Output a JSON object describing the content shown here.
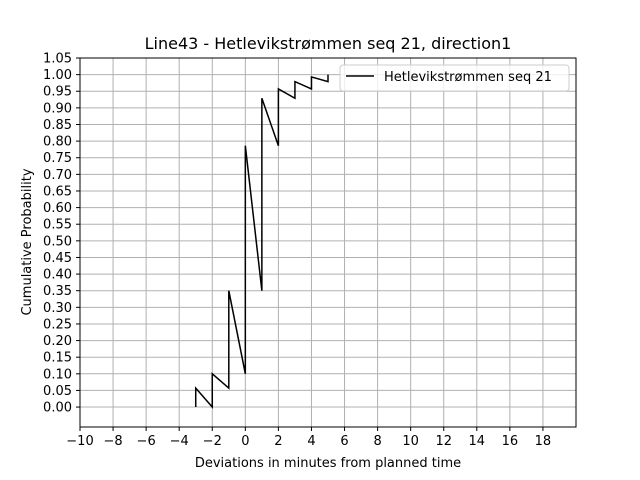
{
  "chart_data": {
    "type": "line",
    "title": "Line43 - Hetlevikstrømmen seq 21, direction1",
    "xlabel": "Deviations in minutes from planned time",
    "ylabel": "Cumulative Probability",
    "xlim": [
      -10,
      20
    ],
    "ylim": [
      -0.06,
      1.05
    ],
    "xticks": [
      -10,
      -8,
      -6,
      -4,
      -2,
      0,
      2,
      4,
      6,
      8,
      10,
      12,
      14,
      16,
      18
    ],
    "yticks": [
      0.0,
      0.05,
      0.1,
      0.15,
      0.2,
      0.25,
      0.3,
      0.35,
      0.4,
      0.45,
      0.5,
      0.55,
      0.6,
      0.65,
      0.7,
      0.75,
      0.8,
      0.85,
      0.9,
      0.95,
      1.0,
      1.05
    ],
    "grid": true,
    "legend_position": "top-right",
    "series": [
      {
        "name": "Hetlevikstrømmen seq 21",
        "color": "#000000",
        "step": "post",
        "x": [
          -3,
          -2,
          -1,
          0,
          1,
          2,
          3,
          4,
          5
        ],
        "y": [
          0.0,
          0.057,
          0.1,
          0.35,
          0.786,
          0.929,
          0.957,
          0.979,
          0.993
        ],
        "final_y": 1.0
      }
    ]
  }
}
